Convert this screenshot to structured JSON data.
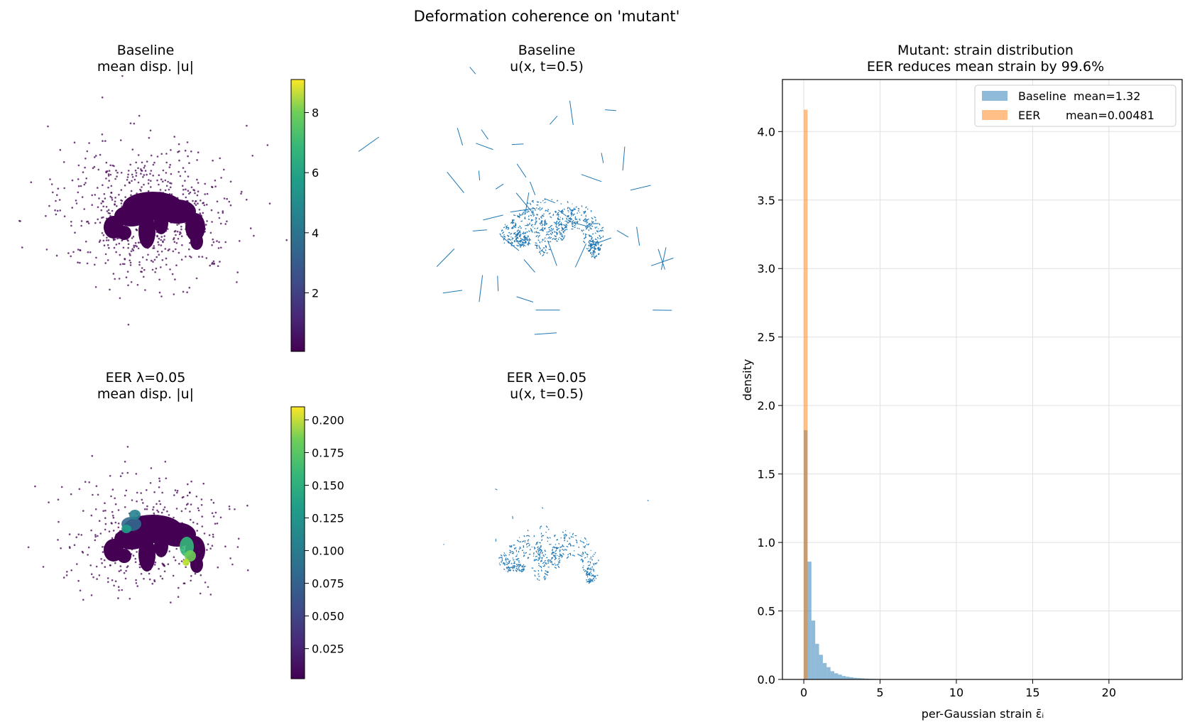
{
  "suptitle": "Deformation coherence on 'mutant'",
  "panels": {
    "baseline_disp": {
      "title_line1": "Baseline",
      "title_line2": "mean disp. |u|",
      "colorbar_ticks": [
        2,
        4,
        6,
        8
      ],
      "colorbar_range": [
        0.05,
        9.1
      ]
    },
    "baseline_field": {
      "title_line1": "Baseline",
      "title_line2": "u(x, t=0.5)"
    },
    "eer_disp": {
      "title_line1": "EER λ=0.05",
      "title_line2": "mean disp. |u|",
      "colorbar_ticks": [
        0.025,
        0.05,
        0.075,
        0.1,
        0.125,
        0.15,
        0.175,
        0.2
      ],
      "colorbar_tick_labels": [
        "0.025",
        "0.050",
        "0.075",
        "0.100",
        "0.125",
        "0.150",
        "0.175",
        "0.200"
      ],
      "colorbar_range": [
        0.002,
        0.21
      ]
    },
    "eer_field": {
      "title_line1": "EER λ=0.05",
      "title_line2": "u(x, t=0.5)"
    }
  },
  "colors": {
    "baseline_bar": "#1f77b4",
    "eer_bar": "#ff7f0e",
    "viridis_dark": "#440154",
    "quiver": "#1f77b4"
  },
  "chart_data": {
    "type": "bar",
    "title_line1": "Mutant: strain distribution",
    "title_line2": "EER reduces mean strain by 99.6%",
    "xlabel": "per-Gaussian strain  ε̄ᵢ",
    "ylabel": "density",
    "xlim": [
      -1.4,
      24.8
    ],
    "ylim": [
      0,
      4.38
    ],
    "xticks": [
      0,
      5,
      10,
      15,
      20
    ],
    "yticks": [
      0.0,
      0.5,
      1.0,
      1.5,
      2.0,
      2.5,
      3.0,
      3.5,
      4.0
    ],
    "ytick_labels": [
      "0.0",
      "0.5",
      "1.0",
      "1.5",
      "2.0",
      "2.5",
      "3.0",
      "3.5",
      "4.0"
    ],
    "grid": true,
    "legend_position": "top-right",
    "series": [
      {
        "name": "Baseline",
        "legend_label": "Baseline  mean=1.32",
        "bin_width": 0.25,
        "x": [
          0.0,
          0.25,
          0.5,
          0.75,
          1.0,
          1.25,
          1.5,
          1.75,
          2.0,
          2.25,
          2.5,
          2.75,
          3.0,
          3.25,
          3.5,
          3.75,
          4.0,
          4.25,
          4.5,
          4.75,
          5.0,
          5.25,
          5.5,
          5.75,
          6.0,
          6.25,
          6.5
        ],
        "values": [
          1.82,
          0.86,
          0.43,
          0.26,
          0.18,
          0.12,
          0.09,
          0.06,
          0.045,
          0.035,
          0.025,
          0.02,
          0.016,
          0.012,
          0.01,
          0.008,
          0.006,
          0.005,
          0.004,
          0.003,
          0.003,
          0.002,
          0.002,
          0.002,
          0.001,
          0.001,
          0.001
        ]
      },
      {
        "name": "EER",
        "legend_label": "EER       mean=0.00481",
        "bin_width": 0.25,
        "x": [
          0.0
        ],
        "values": [
          4.16
        ]
      }
    ]
  }
}
